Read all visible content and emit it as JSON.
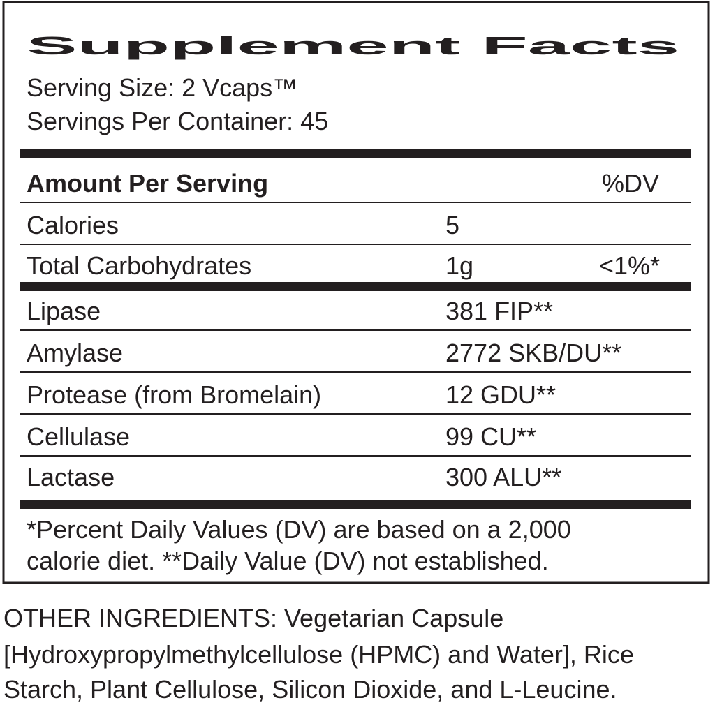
{
  "title": "Supplement Facts",
  "serving_size": "Serving Size: 2 Vcaps™",
  "servings_per_container": "Servings Per Container: 45",
  "header": {
    "amount": "Amount Per Serving",
    "dv": "%DV"
  },
  "rows": [
    {
      "name": "Calories",
      "amount": "5"
    },
    {
      "name": "Total Carbohydrates",
      "amount": "1g",
      "dv": "<1%*"
    },
    {
      "name": "Lipase",
      "amount": "381 FIP**"
    },
    {
      "name": "Amylase",
      "amount": "2772 SKB/DU**"
    },
    {
      "name": "Protease (from Bromelain)",
      "amount": "12 GDU**"
    },
    {
      "name": "Cellulase",
      "amount": "99 CU**"
    },
    {
      "name": "Lactase",
      "amount": "300 ALU**"
    }
  ],
  "footnote": [
    "*Percent Daily Values (DV) are based on a 2,000",
    "calorie diet. **Daily Value (DV) not established."
  ],
  "other_ingredients": [
    "OTHER INGREDIENTS: Vegetarian Capsule",
    "[Hydroxypropylmethylcellulose (HPMC) and Water], Rice",
    "Starch, Plant Cellulose, Silicon Dioxide, and L-Leucine."
  ]
}
